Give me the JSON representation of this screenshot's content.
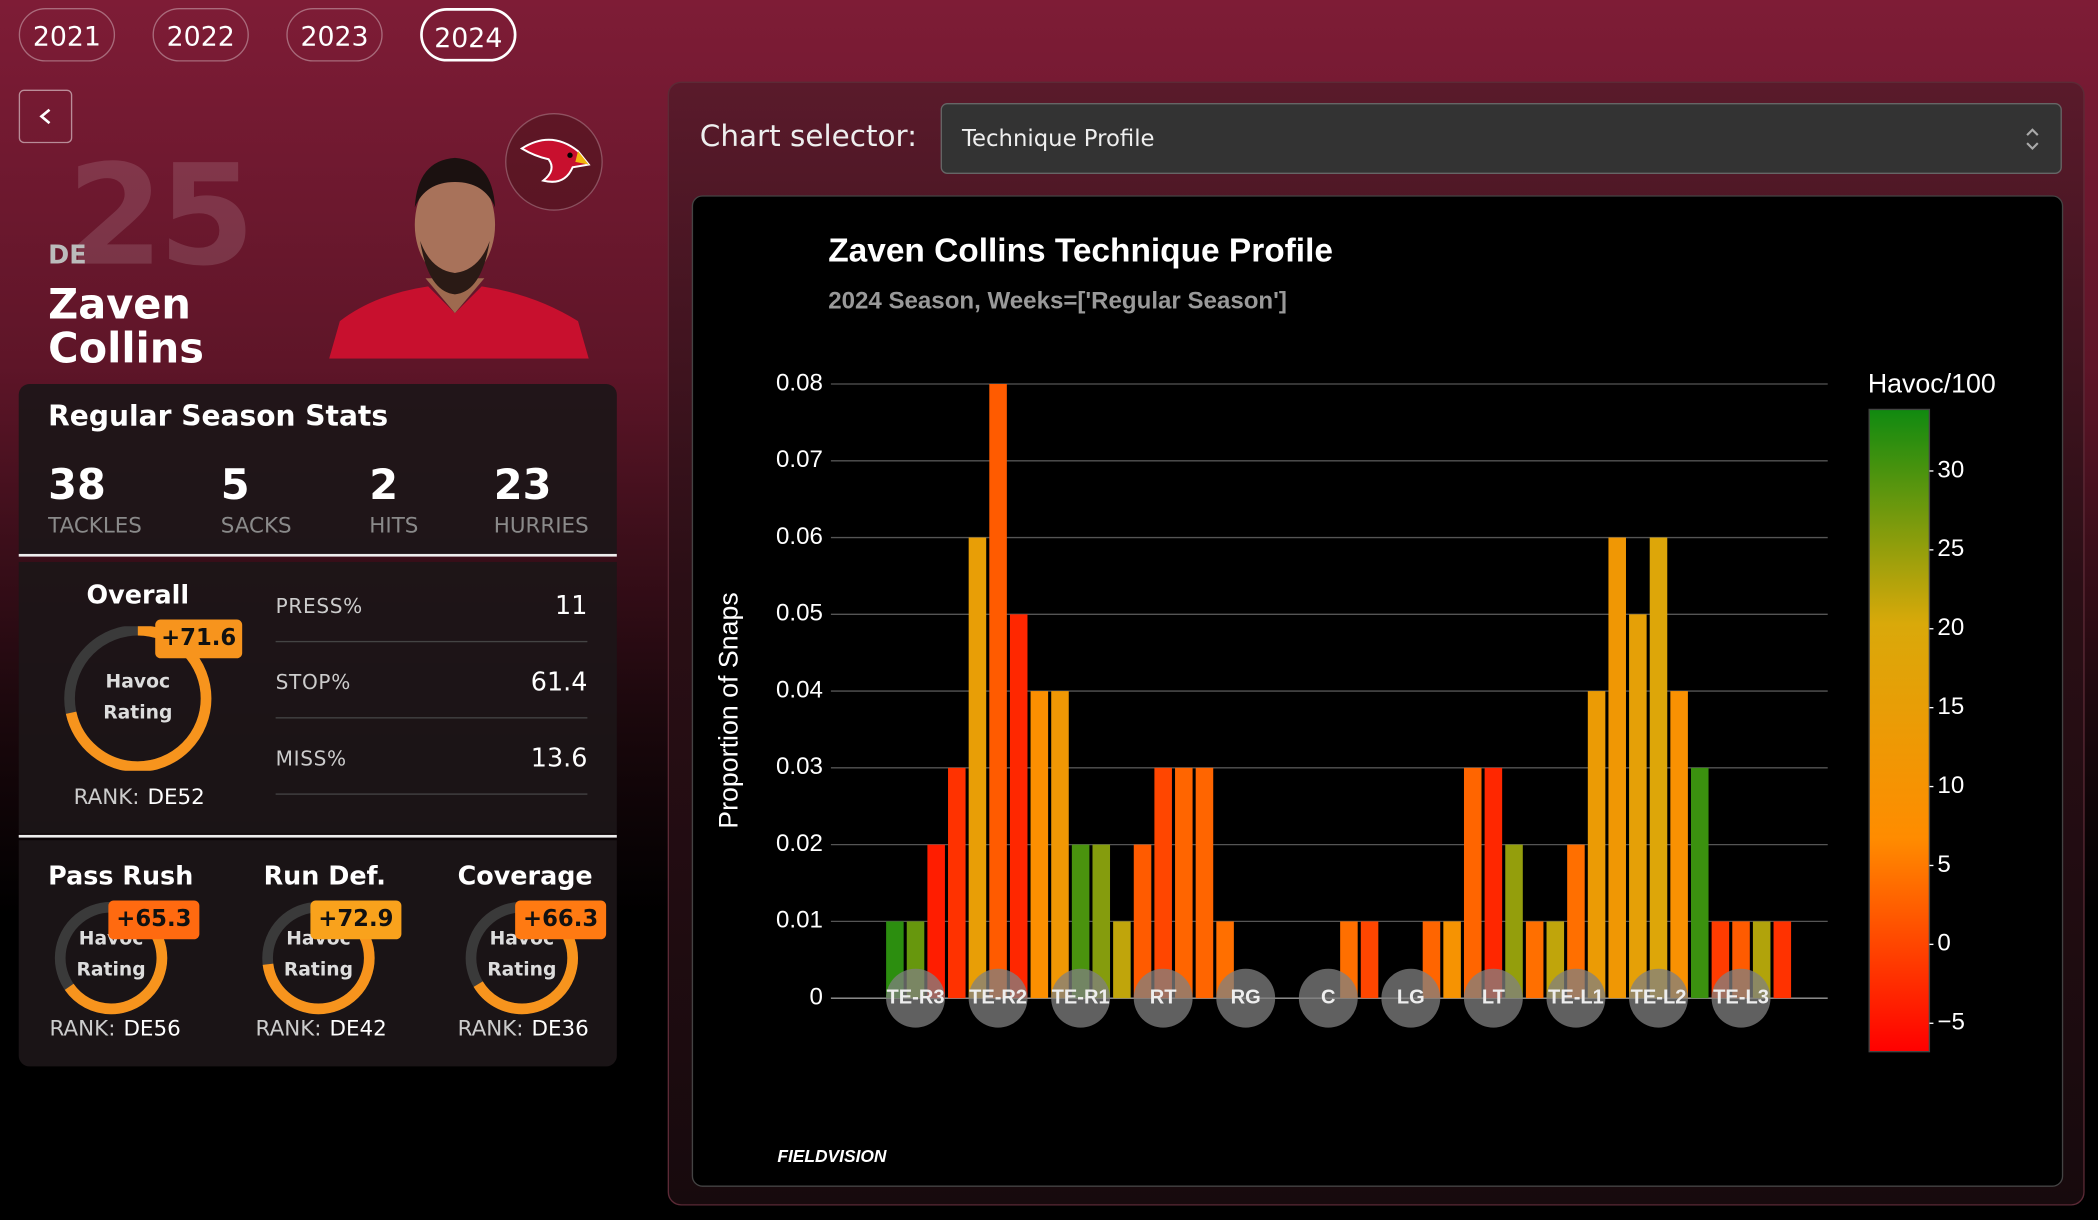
{
  "years": [
    {
      "label": "2021"
    },
    {
      "label": "2022"
    },
    {
      "label": "2023"
    },
    {
      "label": "2024",
      "selected": true
    }
  ],
  "player": {
    "position": "DE",
    "number": "25",
    "name": "Zaven Collins"
  },
  "season_stats": {
    "title": "Regular Season Stats",
    "items": [
      {
        "value": "38",
        "label": "TACKLES"
      },
      {
        "value": "5",
        "label": "SACKS"
      },
      {
        "value": "2",
        "label": "HITS"
      },
      {
        "value": "23",
        "label": "HURRIES"
      }
    ]
  },
  "overall": {
    "title": "Overall",
    "rating": {
      "value": 71.6,
      "label": "+71.6"
    },
    "gauge_label": "Havoc Rating",
    "rank_label": "RANK:",
    "rank": "DE52",
    "metrics": [
      {
        "label": "PRESS%",
        "value": "11"
      },
      {
        "label": "STOP%",
        "value": "61.4"
      },
      {
        "label": "MISS%",
        "value": "13.6"
      }
    ]
  },
  "sub_ratings": [
    {
      "title": "Pass Rush",
      "rating": {
        "value": 65.3,
        "label": "+65.3"
      },
      "gauge_label": "Havoc Rating",
      "rank_label": "RANK:",
      "rank": "DE56"
    },
    {
      "title": "Run Def.",
      "rating": {
        "value": 72.9,
        "label": "+72.9"
      },
      "gauge_label": "Havoc Rating",
      "rank_label": "RANK:",
      "rank": "DE42"
    },
    {
      "title": "Coverage",
      "rating": {
        "value": 66.3,
        "label": "+66.3"
      },
      "gauge_label": "Havoc Rating",
      "rank_label": "RANK:",
      "rank": "DE36"
    }
  ],
  "chart_selector": {
    "label": "Chart selector:",
    "value": "Technique Profile"
  },
  "logo": "FIELDVISION",
  "chart_data": {
    "type": "bar",
    "title": "Zaven Collins Technique Profile",
    "subtitle": "2024 Season, Weeks=['Regular Season']",
    "y_label": "Proportion of Snaps",
    "x": [
      0,
      1,
      2,
      3,
      4,
      5,
      6,
      7,
      8,
      9,
      10,
      11,
      12,
      13,
      14,
      15,
      16,
      22,
      23,
      26,
      27,
      28,
      29,
      30,
      31,
      32,
      33,
      34,
      35,
      36,
      37,
      38,
      39,
      40,
      41,
      42,
      43
    ],
    "values": [
      0.01,
      0.01,
      0.02,
      0.03,
      0.06,
      0.08,
      0.05,
      0.04,
      0.04,
      0.02,
      0.02,
      0.01,
      0.02,
      0.03,
      0.03,
      0.03,
      0.01,
      0.01,
      0.01,
      0.01,
      0.01,
      0.03,
      0.03,
      0.02,
      0.01,
      0.01,
      0.02,
      0.04,
      0.06,
      0.05,
      0.06,
      0.04,
      0.03,
      0.01,
      0.01,
      0.01,
      0.01
    ],
    "color_values": [
      32,
      28,
      -4,
      -2,
      15,
      2,
      -3,
      8,
      12,
      30,
      26,
      22,
      2,
      0,
      3,
      3,
      4,
      4,
      0,
      3,
      10,
      3,
      -3,
      25,
      4,
      22,
      4,
      14,
      12,
      16,
      19,
      9,
      31,
      -1,
      2,
      23,
      -2
    ],
    "colorbar_title": "Havoc/100",
    "colorscale": [
      "#ff0000",
      "#ff8c00",
      "#d9a90a",
      "#108a10"
    ],
    "clim": [
      -6.8,
      33.9
    ],
    "cticks": [
      {
        "value": -5,
        "label": "−5"
      },
      0,
      5,
      10,
      15,
      20,
      25,
      30
    ],
    "xlim": [
      -3.1,
      45.2
    ],
    "xticks": [
      {
        "value": 1,
        "label": "TE-R3"
      },
      {
        "value": 5,
        "label": "TE-R2"
      },
      {
        "value": 9,
        "label": "TE-R1"
      },
      {
        "value": 13,
        "label": "RT"
      },
      {
        "value": 17,
        "label": "RG"
      },
      {
        "value": 21,
        "label": "C"
      },
      {
        "value": 25,
        "label": "LG"
      },
      {
        "value": 29,
        "label": "LT"
      },
      {
        "value": 33,
        "label": "TE-L1"
      },
      {
        "value": 37,
        "label": "TE-L2"
      },
      {
        "value": 41,
        "label": "TE-L3"
      }
    ],
    "ylim": [
      0,
      0.08
    ],
    "yticks": [
      0,
      0.01,
      0.02,
      0.03,
      0.04,
      0.05,
      0.06,
      0.07,
      0.08
    ],
    "grid": true
  }
}
